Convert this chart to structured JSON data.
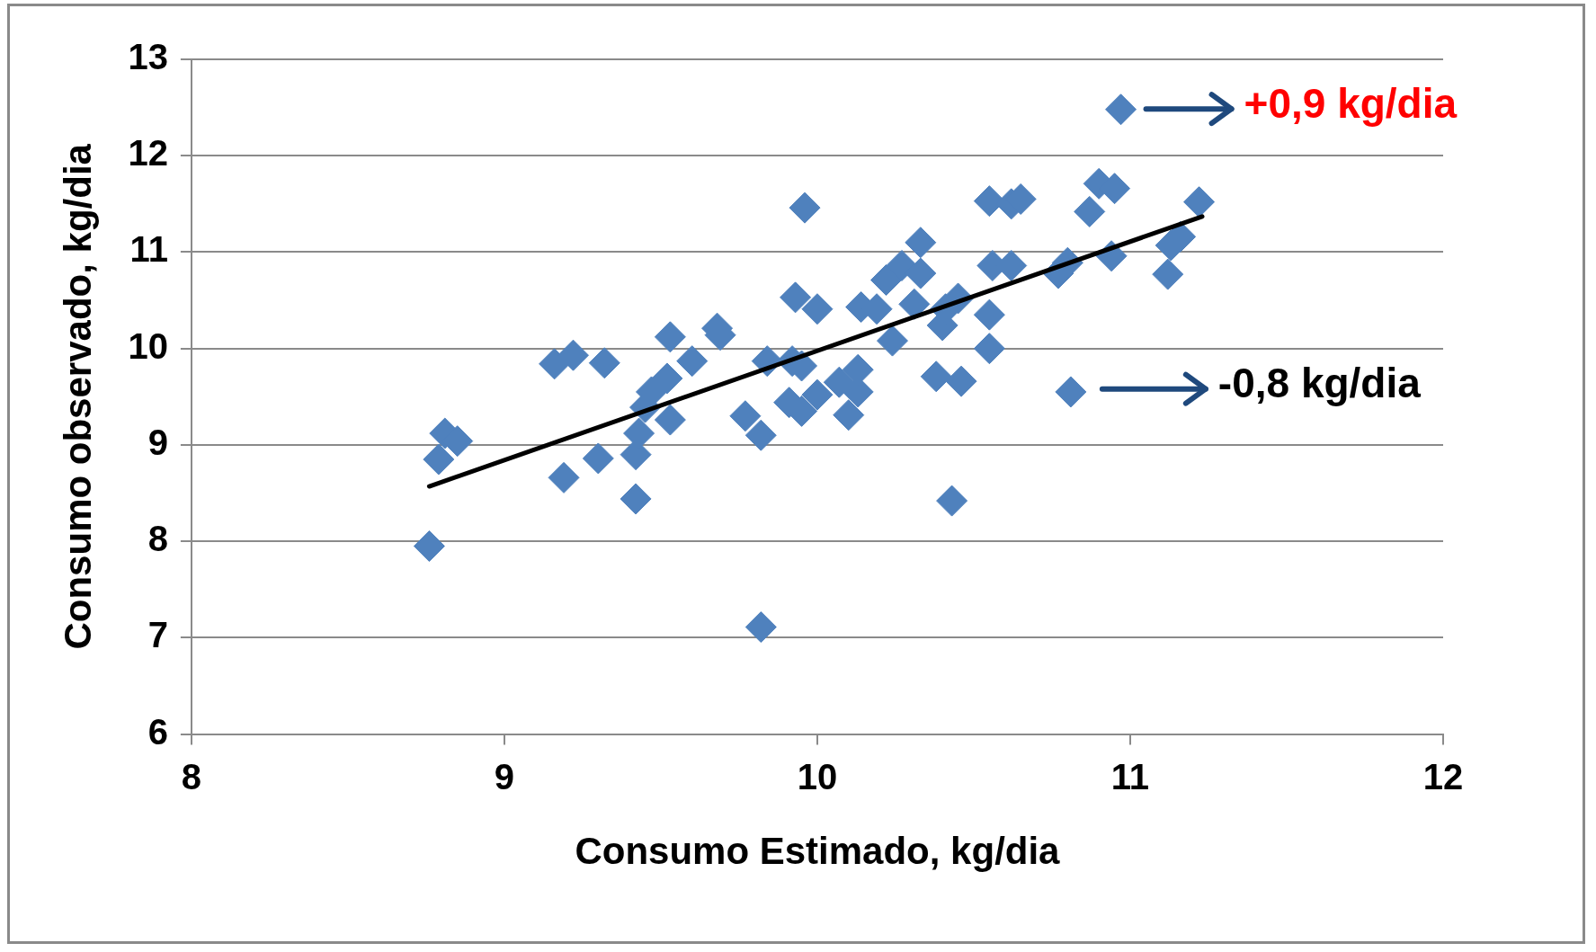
{
  "chart_data": {
    "type": "scatter",
    "xlabel": "Consumo Estimado, kg/dia",
    "ylabel": "Consumo observado, kg/dia",
    "xlim": [
      8,
      12
    ],
    "xticks": [
      8,
      9,
      10,
      11,
      12
    ],
    "ylim": [
      6,
      13
    ],
    "yticks": [
      6,
      7,
      8,
      9,
      10,
      11,
      12,
      13
    ],
    "grid": "y",
    "legend": false,
    "series": [
      {
        "type": "scatter",
        "marker": "diamond",
        "color": "#4f81bd",
        "x": [
          8.76,
          8.79,
          8.81,
          8.85,
          9.16,
          9.22,
          9.32,
          9.19,
          9.3,
          9.42,
          9.42,
          9.43,
          9.45,
          9.47,
          9.52,
          9.53,
          9.53,
          9.6,
          9.68,
          9.69,
          9.77,
          9.82,
          9.82,
          9.84,
          9.91,
          9.92,
          9.93,
          9.96,
          9.95,
          9.95,
          10.0,
          10.0,
          10.07,
          10.1,
          10.13,
          10.13,
          10.14,
          10.19,
          10.22,
          10.24,
          10.27,
          10.31,
          10.33,
          10.33,
          10.38,
          10.4,
          10.41,
          10.43,
          10.45,
          10.46,
          10.55,
          10.55,
          10.55,
          10.56,
          10.62,
          10.62,
          10.65,
          10.77,
          10.8,
          10.81,
          10.87,
          10.9,
          10.94,
          10.95,
          10.97,
          11.12,
          11.13,
          11.16,
          11.22
        ],
        "values": [
          7.95,
          8.85,
          9.12,
          9.04,
          9.84,
          9.93,
          9.85,
          8.66,
          8.86,
          8.44,
          8.9,
          9.12,
          9.39,
          9.55,
          9.69,
          10.12,
          9.26,
          9.87,
          10.21,
          10.14,
          9.3,
          9.1,
          7.11,
          9.87,
          9.44,
          9.87,
          10.53,
          11.46,
          9.82,
          9.35,
          9.52,
          10.41,
          9.65,
          9.31,
          9.55,
          9.78,
          10.43,
          10.41,
          10.71,
          10.08,
          10.86,
          10.46,
          11.1,
          10.78,
          9.71,
          10.24,
          10.41,
          8.42,
          10.52,
          9.66,
          10.35,
          11.53,
          10.0,
          10.86,
          10.86,
          11.5,
          11.55,
          10.78,
          10.89,
          9.55,
          11.42,
          11.71,
          10.96,
          11.66,
          12.48,
          10.77,
          11.07,
          11.16,
          11.52
        ]
      },
      {
        "type": "line",
        "color": "#000000",
        "x": [
          8.76,
          11.23
        ],
        "values": [
          8.57,
          11.37
        ]
      }
    ],
    "annotations": [
      "+0,9 kg/dia",
      "-0,8 kg/dia"
    ]
  }
}
